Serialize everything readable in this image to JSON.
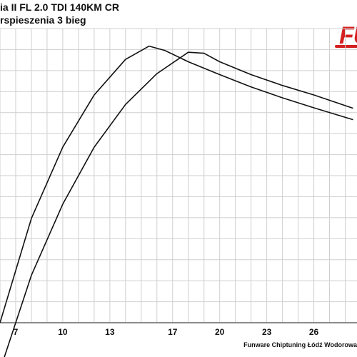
{
  "title": "ia II FL 2.0 TDI 140KM CR",
  "subtitle": "rspieszenia 3 bieg",
  "logo": {
    "text": "FU",
    "color": "#d42020"
  },
  "footer": "Funware Chiptuning Łódź Wodorowa",
  "chart_data": {
    "type": "line",
    "title": "",
    "xlabel": "",
    "ylabel": "",
    "x_ticks": [
      "7",
      "10",
      "13",
      "17",
      "20",
      "23",
      "26"
    ],
    "grid": true,
    "series": [
      {
        "color": "#111111",
        "points": [
          [
            6.0,
            0.0
          ],
          [
            8.0,
            22.0
          ],
          [
            10.0,
            37.0
          ],
          [
            12.0,
            48.0
          ],
          [
            14.0,
            55.5
          ],
          [
            15.5,
            58.3
          ],
          [
            16.5,
            57.4
          ],
          [
            18.0,
            55.0
          ],
          [
            20.0,
            52.3
          ],
          [
            22.0,
            49.7
          ],
          [
            24.0,
            47.4
          ],
          [
            26.0,
            45.3
          ],
          [
            28.5,
            42.8
          ]
        ]
      },
      {
        "color": "#111111",
        "points": [
          [
            6.0,
            -10.0
          ],
          [
            8.0,
            10.0
          ],
          [
            10.0,
            25.0
          ],
          [
            12.0,
            37.0
          ],
          [
            14.0,
            46.0
          ],
          [
            16.0,
            52.5
          ],
          [
            18.0,
            57.0
          ],
          [
            19.0,
            56.8
          ],
          [
            20.0,
            55.0
          ],
          [
            22.0,
            52.3
          ],
          [
            24.0,
            50.0
          ],
          [
            26.0,
            48.0
          ],
          [
            28.5,
            45.2
          ]
        ]
      }
    ]
  }
}
